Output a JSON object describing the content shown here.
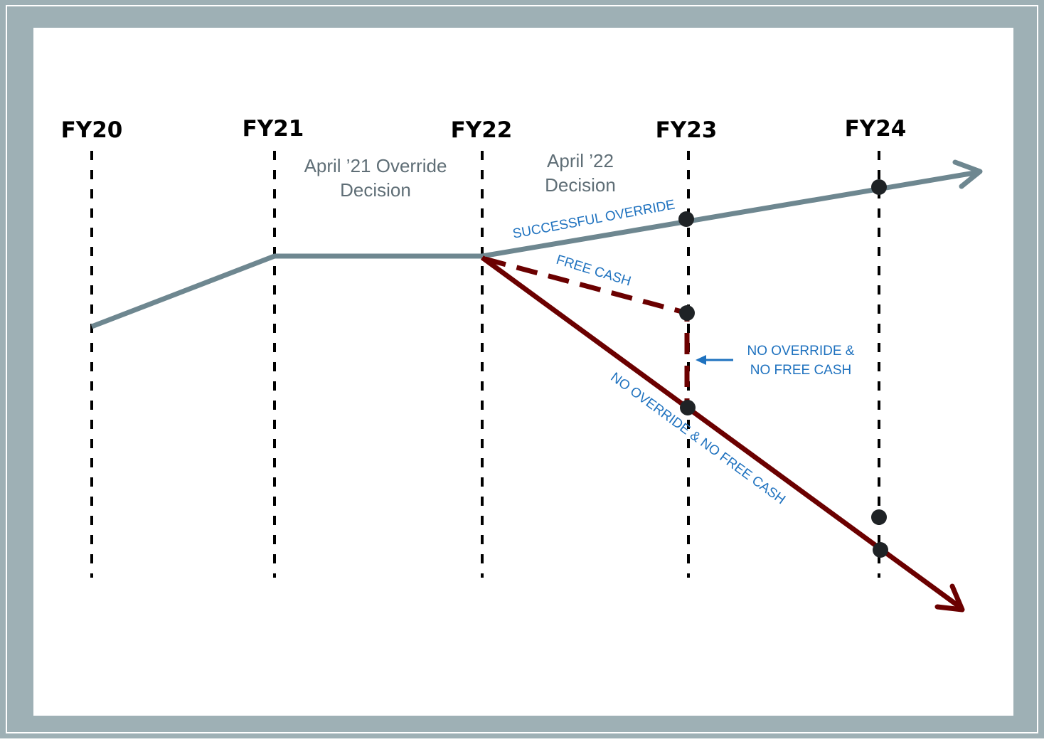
{
  "colors": {
    "frame": "#9eb0b5",
    "gray_line": "#6e8790",
    "dark_red": "#6b0000",
    "blue_text": "#1f72bf",
    "gray_text": "#5f6e76",
    "dot": "#1f2326"
  },
  "fiscal_years": [
    "FY20",
    "FY21",
    "FY22",
    "FY23",
    "FY24"
  ],
  "notes": {
    "april21": [
      "April ’21 Override",
      "Decision"
    ],
    "april22": [
      "April ’22",
      "Decision"
    ]
  },
  "labels": {
    "successful_override": "SUCCESSFUL OVERRIDE",
    "free_cash": "FREE CASH",
    "no_override_callout": [
      "NO OVERRIDE &",
      "NO FREE CASH"
    ],
    "no_override_line": "NO OVERRIDE & NO FREE CASH"
  }
}
